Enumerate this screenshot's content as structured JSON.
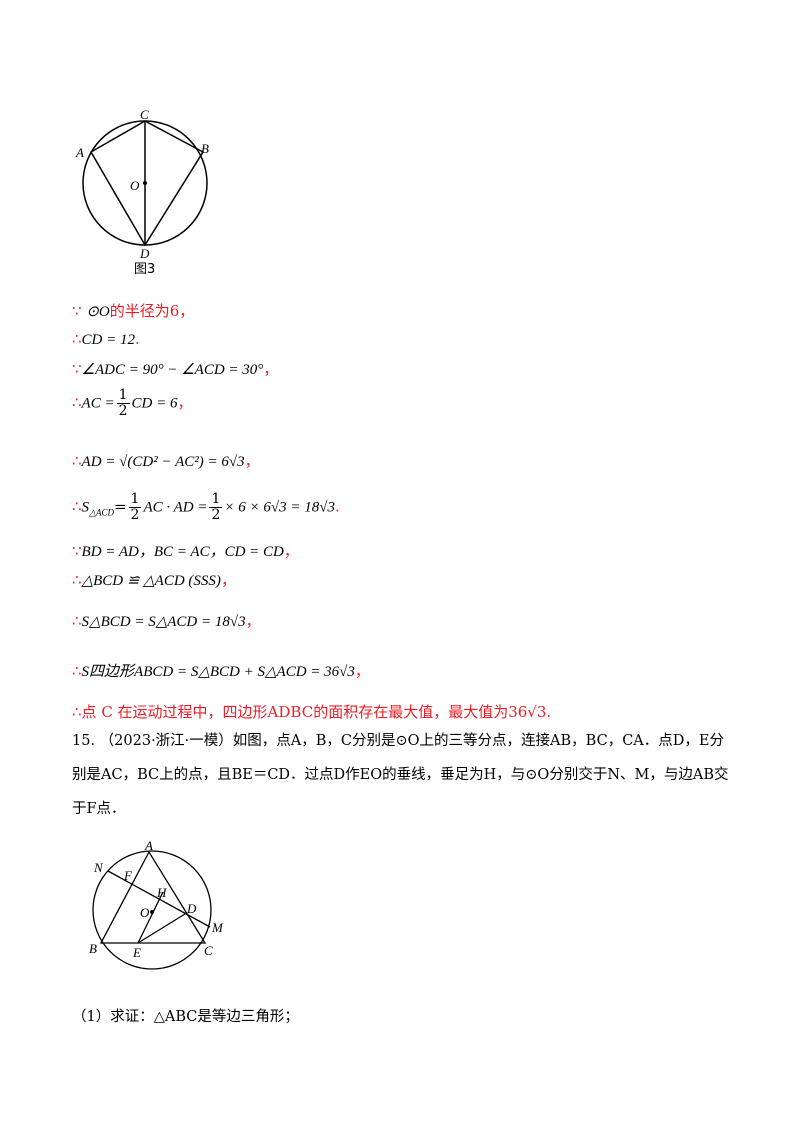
{
  "figure3": {
    "caption": "图3",
    "labels": {
      "A": "A",
      "B": "B",
      "C": "C",
      "D": "D",
      "O": "O"
    }
  },
  "solution": {
    "l1": {
      "sym": "∵",
      "math": "⊙O",
      "text": "的半径为6，"
    },
    "l2": {
      "sym": "∴",
      "math": "CD = 12",
      "end": "."
    },
    "l3": {
      "sym": "∵",
      "math": "∠ADC = 90° − ∠ACD = 30°",
      "end": "，"
    },
    "l4": {
      "sym": "∴",
      "lhs": "AC =",
      "num": "1",
      "den": "2",
      "rhs": "CD = 6",
      "end": "，"
    },
    "l5": {
      "sym": "∴",
      "math": "AD = √(CD² − AC²) = 6√3",
      "end": "，"
    },
    "l6": {
      "sym": "∴",
      "lhs": "S",
      "sub": "△ACD",
      "mid": "=",
      "num": "1",
      "den": "2",
      "mid2": "AC · AD =",
      "rhs": "× 6 × 6√3 = 18√3",
      "end": "."
    },
    "l7": {
      "sym": "∵",
      "math": "BD = AD，BC = AC，CD = CD",
      "end": "，"
    },
    "l8": {
      "sym": "∴",
      "math": "△BCD ≌ △ACD (SSS)",
      "end": "，"
    },
    "l9": {
      "sym": "∴",
      "math": "S△BCD = S△ACD = 18√3",
      "end": "，"
    },
    "l10": {
      "sym": "∴",
      "math": "S四边形ABCD = S△BCD + S△ACD = 36√3",
      "end": "，"
    },
    "l11": {
      "sym": "∴",
      "text": "点 C 在运动过程中，四边形ADBC的面积存在最大值，最大值为36√3",
      "end": "."
    }
  },
  "problem15": {
    "text": "15. （2023·浙江·一模）如图，点A，B，C分别是⊙O上的三等分点，连接AB，BC，CA．点D，E分别是AC，BC上的点，且BE＝CD．过点D作EO的垂线，垂足为H，与⊙O分别交于N、M，与边AB交于F点．",
    "figure": {
      "labels": {
        "A": "A",
        "B": "B",
        "C": "C",
        "D": "D",
        "E": "E",
        "F": "F",
        "H": "H",
        "M": "M",
        "N": "N",
        "O": "O"
      }
    },
    "q1": "（1）求证：△ABC是等边三角形；"
  }
}
